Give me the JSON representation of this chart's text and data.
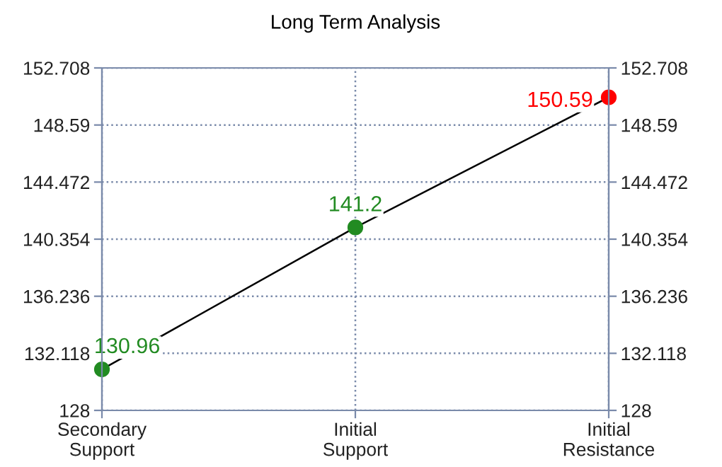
{
  "chart_data": {
    "type": "line",
    "title": "Long Term Analysis",
    "categories": [
      "Secondary\nSupport",
      "Initial\nSupport",
      "Initial\nResistance"
    ],
    "series": [
      {
        "color": "#000000",
        "colors": [
          "#228b22",
          "#228b22",
          "#ff0000"
        ],
        "values": [
          130.96,
          141.2,
          150.59
        ]
      }
    ],
    "ylim": [
      128,
      152.708
    ],
    "yticks": [
      128,
      132.118,
      136.236,
      140.354,
      144.472,
      148.59,
      152.708
    ],
    "y2lim": [
      128,
      152.708
    ],
    "y2ticks": [
      128,
      132.118,
      136.236,
      140.354,
      144.472,
      148.59,
      152.708
    ],
    "grid": true,
    "marker": "circle",
    "data_labels": true
  }
}
